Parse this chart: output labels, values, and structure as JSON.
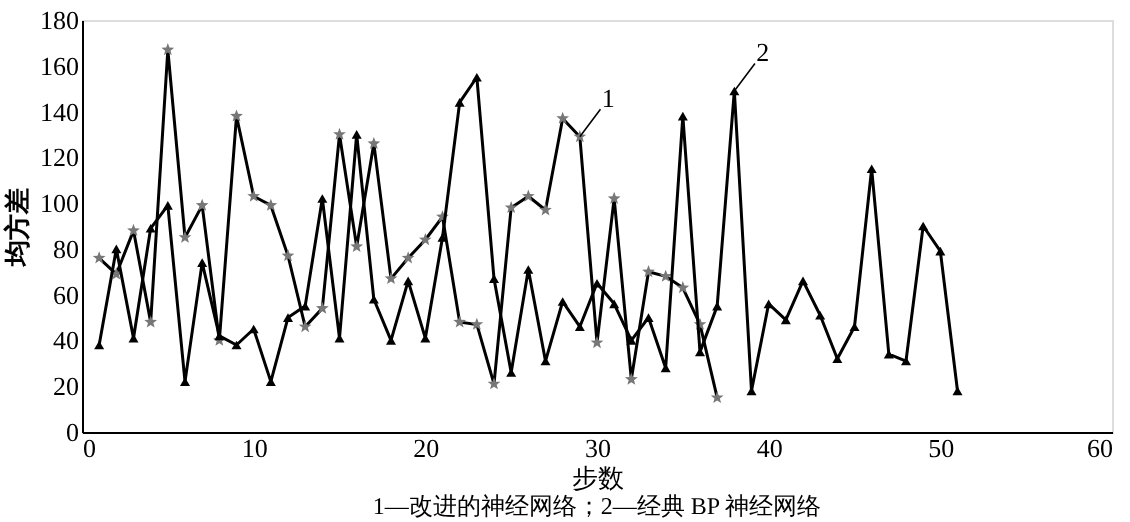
{
  "chart_data": {
    "type": "line",
    "xlabel": "步数",
    "ylabel": "均方差",
    "xlim": [
      0,
      60
    ],
    "xticks": [
      0,
      10,
      20,
      30,
      40,
      50,
      60
    ],
    "ylim": [
      0,
      180
    ],
    "yticks": [
      0,
      20,
      40,
      60,
      80,
      100,
      120,
      140,
      160,
      180
    ],
    "grid": false,
    "line_style": "solid",
    "series": [
      {
        "color": "#000000",
        "marker": "star",
        "x": [
          1,
          2,
          3,
          4,
          5,
          6,
          7,
          8,
          9,
          10,
          11,
          12,
          13,
          14,
          15,
          16,
          17,
          18,
          19,
          20,
          21,
          22,
          23,
          24,
          25,
          26,
          27,
          28,
          29,
          30,
          31,
          32,
          33,
          34,
          35,
          36,
          37
        ],
        "values": [
          76,
          69,
          88,
          48,
          167,
          85,
          99,
          40,
          138,
          103,
          99,
          77,
          46,
          54,
          130,
          81,
          126,
          67,
          76,
          84,
          94,
          48,
          47,
          21,
          98,
          103,
          97,
          137,
          129,
          39,
          102,
          23,
          70,
          68,
          63,
          47,
          15
        ]
      },
      {
        "color": "#000000",
        "marker": "triangle",
        "x": [
          1,
          2,
          3,
          4,
          5,
          6,
          7,
          8,
          9,
          10,
          11,
          12,
          13,
          14,
          15,
          16,
          17,
          18,
          19,
          20,
          21,
          22,
          23,
          24,
          25,
          26,
          27,
          28,
          29,
          30,
          31,
          32,
          33,
          34,
          35,
          36,
          37,
          38,
          39,
          40,
          41,
          42,
          43,
          44,
          45,
          46,
          47,
          48,
          49,
          50,
          51
        ],
        "values": [
          38,
          80,
          41,
          89,
          99,
          22,
          74,
          42,
          38,
          45,
          22,
          50,
          55,
          102,
          41,
          130,
          58,
          40,
          66,
          41,
          85,
          144,
          155,
          67,
          26,
          71,
          31,
          57,
          46,
          65,
          56,
          40,
          50,
          28,
          138,
          35,
          55,
          149,
          18,
          56,
          49,
          66,
          51,
          32,
          46,
          115,
          34,
          31,
          90,
          79,
          18
        ]
      }
    ],
    "annotations": [
      {
        "text": "1",
        "x": 29,
        "y": 129
      },
      {
        "text": "2",
        "x": 38,
        "y": 149
      },
      "1—改进的神经网络；2—经典 BP 神经网络"
    ]
  }
}
